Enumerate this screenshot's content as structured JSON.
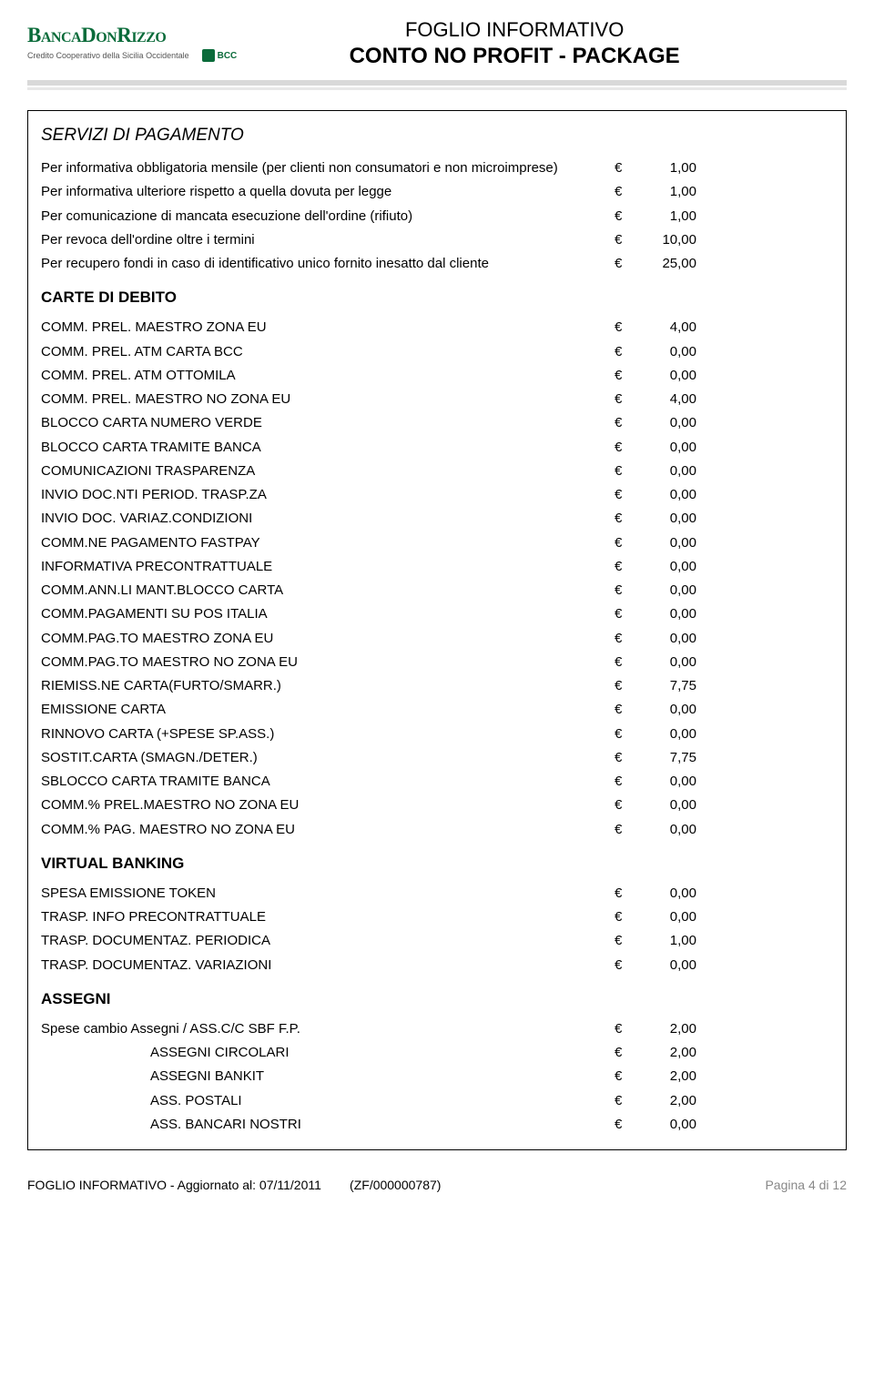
{
  "header": {
    "logo_main": "BANCADONRIZZO",
    "logo_sub": "Credito Cooperativo della Sicilia Occidentale",
    "badge_text": "BCC",
    "title_line1": "FOGLIO INFORMATIVO",
    "title_line2": "CONTO NO PROFIT - PACKAGE"
  },
  "currency": "€",
  "sections": {
    "servizi": {
      "title": "SERVIZI DI PAGAMENTO",
      "rows": [
        {
          "label": "Per informativa obbligatoria mensile (per clienti non consumatori e non microimprese)",
          "value": "1,00"
        },
        {
          "label": "Per informativa ulteriore rispetto a quella dovuta per legge",
          "value": "1,00"
        },
        {
          "label": "Per comunicazione di mancata esecuzione dell'ordine (rifiuto)",
          "value": "1,00"
        },
        {
          "label": "Per revoca dell'ordine oltre i termini",
          "value": "10,00"
        },
        {
          "label": "Per recupero fondi in caso di identificativo unico fornito inesatto dal cliente",
          "value": "25,00"
        }
      ]
    },
    "carte": {
      "title": "CARTE DI DEBITO",
      "rows": [
        {
          "label": "COMM. PREL. MAESTRO ZONA EU",
          "value": "4,00"
        },
        {
          "label": "COMM. PREL. ATM CARTA BCC",
          "value": "0,00"
        },
        {
          "label": "COMM. PREL. ATM OTTOMILA",
          "value": "0,00"
        },
        {
          "label": "COMM. PREL. MAESTRO NO ZONA EU",
          "value": "4,00"
        },
        {
          "label": "BLOCCO CARTA NUMERO VERDE",
          "value": "0,00"
        },
        {
          "label": "BLOCCO CARTA TRAMITE BANCA",
          "value": "0,00"
        },
        {
          "label": "COMUNICAZIONI TRASPARENZA",
          "value": "0,00"
        },
        {
          "label": "INVIO DOC.NTI PERIOD. TRASP.ZA",
          "value": "0,00"
        },
        {
          "label": "INVIO DOC. VARIAZ.CONDIZIONI",
          "value": "0,00"
        },
        {
          "label": "COMM.NE PAGAMENTO FASTPAY",
          "value": "0,00"
        },
        {
          "label": "INFORMATIVA PRECONTRATTUALE",
          "value": "0,00"
        },
        {
          "label": "COMM.ANN.LI MANT.BLOCCO CARTA",
          "value": "0,00"
        },
        {
          "label": "COMM.PAGAMENTI SU POS ITALIA",
          "value": "0,00"
        },
        {
          "label": "COMM.PAG.TO MAESTRO ZONA EU",
          "value": "0,00"
        },
        {
          "label": "COMM.PAG.TO MAESTRO NO ZONA EU",
          "value": "0,00"
        },
        {
          "label": "RIEMISS.NE CARTA(FURTO/SMARR.)",
          "value": "7,75"
        },
        {
          "label": "EMISSIONE CARTA",
          "value": "0,00"
        },
        {
          "label": "RINNOVO CARTA (+SPESE SP.ASS.)",
          "value": "0,00"
        },
        {
          "label": "SOSTIT.CARTA (SMAGN./DETER.)",
          "value": "7,75"
        },
        {
          "label": "SBLOCCO CARTA TRAMITE BANCA",
          "value": "0,00"
        },
        {
          "label": "COMM.% PREL.MAESTRO NO ZONA EU",
          "value": "0,00"
        },
        {
          "label": "COMM.% PAG. MAESTRO NO ZONA EU",
          "value": "0,00"
        }
      ]
    },
    "virtual": {
      "title": "VIRTUAL BANKING",
      "rows": [
        {
          "label": "SPESA EMISSIONE TOKEN",
          "value": "0,00"
        },
        {
          "label": "TRASP. INFO PRECONTRATTUALE",
          "value": "0,00"
        },
        {
          "label": "TRASP. DOCUMENTAZ. PERIODICA",
          "value": "1,00"
        },
        {
          "label": "TRASP. DOCUMENTAZ. VARIAZIONI",
          "value": "0,00"
        }
      ]
    },
    "assegni": {
      "title": "ASSEGNI",
      "rows": [
        {
          "label": "Spese cambio Assegni / ASS.C/C SBF F.P.",
          "value": "2,00",
          "indent": false
        },
        {
          "label": "ASSEGNI CIRCOLARI",
          "value": "2,00",
          "indent": true
        },
        {
          "label": "ASSEGNI BANKIT",
          "value": "2,00",
          "indent": true
        },
        {
          "label": "ASS. POSTALI",
          "value": "2,00",
          "indent": true
        },
        {
          "label": "ASS. BANCARI NOSTRI",
          "value": "0,00",
          "indent": true
        }
      ]
    }
  },
  "footer": {
    "left_prefix": "FOGLIO INFORMATIVO - Aggiornato al: ",
    "date": "07/11/2011",
    "code": "(ZF/000000787)",
    "page": "Pagina 4 di 12"
  }
}
